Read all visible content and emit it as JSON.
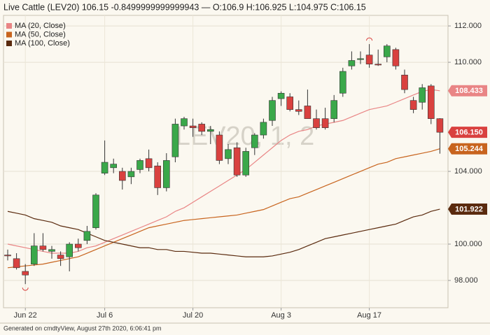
{
  "chart_data": {
    "type": "candlestick",
    "title": "Live Cattle (LEV20) 106.15 -0.8499999999999943 — O:106.9 H:106.925 L:104.975 C:106.15",
    "watermark": "LEV20, 1, 2",
    "footer": "Generated on cmdtyView, August 27th 2020, 6:06:41 pm",
    "categories": [
      null,
      null,
      "Jun 22",
      null,
      null,
      null,
      null,
      null,
      null,
      null,
      null,
      "Jul 6",
      null,
      null,
      null,
      null,
      null,
      null,
      null,
      null,
      null,
      "Jul 20",
      null,
      null,
      null,
      null,
      null,
      null,
      null,
      null,
      null,
      "Aug 3",
      null,
      null,
      null,
      null,
      null,
      null,
      null,
      null,
      null,
      "Aug 17",
      null,
      null,
      null,
      null,
      null,
      null,
      null,
      null
    ],
    "candles": {
      "up_color": "#3aa84a",
      "down_color": "#d9413f",
      "open": [
        99.4,
        99.2,
        98.5,
        98.9,
        99.9,
        99.6,
        99.4,
        99.3,
        100.0,
        100.2,
        100.9,
        103.9,
        104.2,
        104.0,
        103.7,
        104.1,
        104.7,
        104.3,
        103.1,
        104.8,
        106.5,
        106.5,
        106.6,
        106.2,
        106.0,
        104.7,
        105.3,
        103.8,
        105.3,
        106.0,
        106.8,
        108.0,
        108.1,
        107.4,
        107.6,
        106.9,
        106.9,
        106.9,
        108.3,
        109.8,
        110.15,
        110.4,
        109.9,
        110.3,
        110.7,
        109.3,
        107.9,
        107.8,
        108.7,
        106.9
      ],
      "high": [
        99.7,
        99.5,
        98.9,
        100.6,
        100.6,
        99.9,
        99.6,
        100.1,
        100.3,
        101.0,
        102.8,
        105.7,
        104.7,
        104.2,
        104.2,
        104.7,
        105.2,
        104.5,
        105.0,
        106.9,
        107.0,
        106.9,
        106.7,
        106.5,
        106.2,
        105.5,
        105.6,
        105.3,
        106.1,
        106.9,
        108.1,
        108.4,
        108.3,
        107.9,
        108.5,
        107.4,
        107.5,
        108.2,
        109.7,
        110.6,
        110.6,
        111.0,
        110.7,
        111.0,
        110.8,
        109.6,
        108.1,
        108.8,
        108.8,
        106.925
      ],
      "low": [
        99.1,
        98.6,
        97.8,
        98.8,
        99.6,
        99.2,
        98.8,
        98.5,
        99.6,
        100.0,
        100.8,
        103.8,
        103.9,
        103.0,
        103.3,
        103.9,
        104.0,
        102.7,
        102.9,
        104.5,
        106.3,
        105.9,
        106.0,
        105.5,
        104.4,
        104.4,
        103.7,
        103.7,
        104.9,
        105.8,
        106.5,
        107.6,
        107.3,
        107.1,
        106.9,
        106.3,
        106.3,
        106.7,
        108.1,
        109.6,
        109.9,
        109.7,
        109.8,
        110.0,
        109.6,
        108.3,
        107.2,
        107.4,
        106.6,
        104.975
      ],
      "close": [
        99.35,
        98.7,
        98.3,
        99.9,
        99.7,
        99.7,
        99.2,
        100.0,
        99.8,
        100.7,
        102.7,
        104.5,
        104.4,
        103.5,
        104.0,
        104.6,
        104.2,
        103.1,
        104.6,
        106.6,
        106.9,
        106.4,
        106.2,
        106.3,
        104.6,
        105.2,
        103.8,
        105.1,
        106.0,
        106.7,
        107.9,
        108.3,
        107.4,
        107.3,
        106.9,
        106.4,
        106.4,
        107.9,
        109.5,
        110.1,
        110.2,
        109.9,
        109.85,
        110.9,
        109.8,
        108.5,
        107.4,
        108.6,
        106.9,
        106.15
      ],
      "value_labels": [
        null,
        null,
        null,
        null,
        null,
        null,
        null,
        null,
        null,
        null,
        null,
        null,
        null,
        null,
        null,
        null,
        null,
        null,
        null,
        null,
        null,
        null,
        null,
        null,
        null,
        null,
        null,
        null,
        null,
        null,
        null,
        null,
        null,
        null,
        null,
        null,
        null,
        null,
        null,
        null,
        null,
        null,
        null,
        null,
        null,
        null,
        null,
        null,
        null,
        "106.150"
      ]
    },
    "series": [
      {
        "name": "MA (20, Close)",
        "color": "#e98585",
        "values": [
          100.0,
          99.9,
          99.8,
          99.7,
          99.6,
          99.5,
          99.5,
          99.5,
          99.6,
          99.8,
          99.9,
          100.1,
          100.3,
          100.5,
          100.7,
          100.9,
          101.1,
          101.3,
          101.5,
          101.8,
          102.0,
          102.3,
          102.6,
          102.9,
          103.2,
          103.5,
          103.8,
          104.1,
          104.5,
          104.9,
          105.3,
          105.7,
          106.0,
          106.2,
          106.3,
          106.5,
          106.6,
          106.7,
          106.8,
          107.0,
          107.2,
          107.4,
          107.5,
          107.6,
          107.8,
          108.0,
          108.2,
          108.4,
          108.5,
          108.433
        ],
        "value_labels": [
          null,
          null,
          null,
          null,
          null,
          null,
          null,
          null,
          null,
          null,
          null,
          null,
          null,
          null,
          null,
          null,
          null,
          null,
          null,
          null,
          null,
          null,
          null,
          null,
          null,
          null,
          null,
          null,
          null,
          null,
          null,
          null,
          null,
          null,
          null,
          null,
          null,
          null,
          null,
          null,
          null,
          null,
          null,
          null,
          null,
          null,
          null,
          null,
          null,
          "108.433"
        ]
      },
      {
        "name": "MA (50, Close)",
        "color": "#c8641e",
        "values": [
          98.7,
          98.75,
          98.8,
          98.85,
          98.9,
          99.0,
          99.1,
          99.2,
          99.3,
          99.5,
          99.7,
          99.9,
          100.1,
          100.3,
          100.5,
          100.7,
          100.9,
          101.0,
          101.1,
          101.2,
          101.3,
          101.35,
          101.4,
          101.45,
          101.5,
          101.55,
          101.6,
          101.7,
          101.8,
          101.9,
          102.1,
          102.3,
          102.5,
          102.6,
          102.8,
          103.0,
          103.2,
          103.4,
          103.6,
          103.8,
          104.0,
          104.2,
          104.4,
          104.5,
          104.7,
          104.8,
          104.9,
          105.0,
          105.1,
          105.244
        ],
        "value_labels": [
          null,
          null,
          null,
          null,
          null,
          null,
          null,
          null,
          null,
          null,
          null,
          null,
          null,
          null,
          null,
          null,
          null,
          null,
          null,
          null,
          null,
          null,
          null,
          null,
          null,
          null,
          null,
          null,
          null,
          null,
          null,
          null,
          null,
          null,
          null,
          null,
          null,
          null,
          null,
          null,
          null,
          null,
          null,
          null,
          null,
          null,
          null,
          null,
          null,
          "105.244"
        ]
      },
      {
        "name": "MA (100, Close)",
        "color": "#5a2a0e",
        "values": [
          101.8,
          101.7,
          101.6,
          101.4,
          101.3,
          101.2,
          101.0,
          100.9,
          100.8,
          100.6,
          100.4,
          100.2,
          100.1,
          100.0,
          99.9,
          99.8,
          99.8,
          99.7,
          99.7,
          99.6,
          99.6,
          99.55,
          99.5,
          99.5,
          99.45,
          99.4,
          99.35,
          99.3,
          99.3,
          99.3,
          99.35,
          99.45,
          99.55,
          99.7,
          99.9,
          100.1,
          100.3,
          100.4,
          100.5,
          100.6,
          100.7,
          100.8,
          100.9,
          101.0,
          101.1,
          101.3,
          101.5,
          101.6,
          101.8,
          101.922
        ],
        "value_labels": [
          null,
          null,
          null,
          null,
          null,
          null,
          null,
          null,
          null,
          null,
          null,
          null,
          null,
          null,
          null,
          null,
          null,
          null,
          null,
          null,
          null,
          null,
          null,
          null,
          null,
          null,
          null,
          null,
          null,
          null,
          null,
          null,
          null,
          null,
          null,
          null,
          null,
          null,
          null,
          null,
          null,
          null,
          null,
          null,
          null,
          null,
          null,
          null,
          null,
          "101.922"
        ]
      }
    ],
    "ylim": [
      96.5,
      112.58
    ],
    "yticks": [
      {
        "value": 98,
        "label": "98.000"
      },
      {
        "value": 100,
        "label": "100.000"
      },
      {
        "value": 104,
        "label": "104.000"
      },
      {
        "value": 110,
        "label": "110.000"
      },
      {
        "value": 112,
        "label": "112.000"
      }
    ],
    "grid": true,
    "legend": "top-left"
  }
}
